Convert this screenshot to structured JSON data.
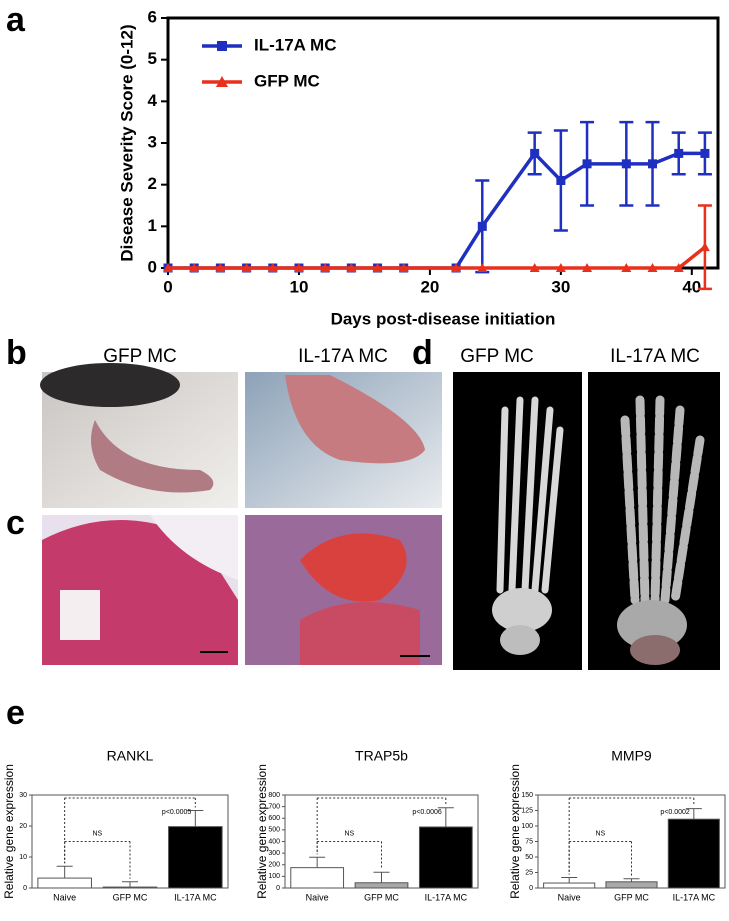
{
  "panel_labels": [
    "a",
    "b",
    "c",
    "d",
    "e"
  ],
  "image_captions": {
    "b": [
      "GFP MC",
      "IL-17A MC"
    ],
    "d": [
      "GFP MC",
      "IL-17A MC"
    ]
  },
  "chart_data": [
    {
      "type": "line",
      "xlabel": "Days post-disease initiation",
      "ylabel": "Disease Severity Score (0-12)",
      "x": [
        0,
        2,
        4,
        6,
        8,
        10,
        12,
        14,
        16,
        18,
        22,
        24,
        28,
        30,
        32,
        35,
        37,
        39,
        41
      ],
      "series": [
        {
          "name": "IL-17A MC",
          "color": "#1f2fbf",
          "marker": "square",
          "values": [
            0,
            0,
            0,
            0,
            0,
            0,
            0,
            0,
            0,
            0,
            0,
            1,
            2.75,
            2.1,
            2.5,
            2.5,
            2.5,
            2.75,
            2.75
          ],
          "errors": [
            0,
            0,
            0,
            0,
            0,
            0,
            0,
            0,
            0,
            0,
            0,
            1.1,
            0.5,
            1.2,
            1,
            1,
            1,
            0.5,
            0.5
          ]
        },
        {
          "name": "GFP MC",
          "color": "#e8301c",
          "marker": "triangle",
          "values": [
            0,
            0,
            0,
            0,
            0,
            0,
            0,
            0,
            0,
            0,
            0,
            0,
            0,
            0,
            0,
            0,
            0,
            0,
            0.5
          ],
          "errors": [
            0,
            0,
            0,
            0,
            0,
            0,
            0,
            0,
            0,
            0,
            0,
            0,
            0,
            0,
            0,
            0,
            0,
            0,
            1
          ]
        }
      ],
      "xlim": [
        0,
        42
      ],
      "xticks": [
        0,
        10,
        20,
        30,
        40
      ],
      "ylim": [
        0,
        6
      ],
      "yticks": [
        0,
        1,
        2,
        3,
        4,
        5,
        6
      ],
      "legend": "upper left"
    },
    {
      "type": "bar",
      "title": "RANKL",
      "ylabel": "Relative gene expression",
      "categories": [
        "Naive",
        "GFP MC",
        "IL-17A MC"
      ],
      "values": [
        3.2,
        0.3,
        19.8
      ],
      "errors": [
        3.8,
        1.7,
        5.2
      ],
      "colors": [
        "#ffffff",
        "#a8a8a8",
        "#000000"
      ],
      "ylim": [
        0,
        30
      ],
      "yticks": [
        0,
        10,
        20,
        30
      ],
      "annotations": [
        "p<0.0005",
        "NS"
      ]
    },
    {
      "type": "bar",
      "title": "TRAP5b",
      "ylabel": "Relative gene expression",
      "categories": [
        "Naive",
        "GFP MC",
        "IL-17A MC"
      ],
      "values": [
        175,
        45,
        525
      ],
      "errors": [
        90,
        90,
        165
      ],
      "colors": [
        "#ffffff",
        "#a8a8a8",
        "#000000"
      ],
      "ylim": [
        0,
        800
      ],
      "yticks": [
        0,
        100,
        200,
        300,
        400,
        500,
        600,
        700,
        800
      ],
      "annotations": [
        "p<0.0006",
        "NS"
      ]
    },
    {
      "type": "bar",
      "title": "MMP9",
      "ylabel": "Relative gene expression",
      "categories": [
        "Naive",
        "GFP MC",
        "IL-17A MC"
      ],
      "values": [
        8,
        10,
        111
      ],
      "errors": [
        9,
        5,
        17
      ],
      "colors": [
        "#ffffff",
        "#a8a8a8",
        "#000000"
      ],
      "ylim": [
        0,
        150
      ],
      "yticks": [
        0,
        25,
        50,
        75,
        100,
        125,
        150
      ],
      "annotations": [
        "p<0.0002",
        "NS"
      ]
    }
  ]
}
